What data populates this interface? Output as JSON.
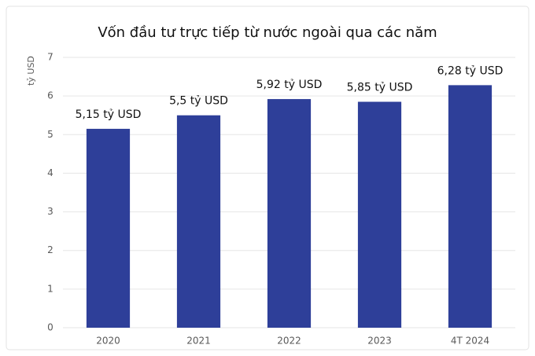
{
  "chart_data": {
    "type": "bar",
    "title": "Vốn đầu tư trực tiếp từ nước ngoài qua các năm",
    "y_label": "tỷ USD",
    "categories": [
      "2020",
      "2021",
      "2022",
      "2023",
      "4T 2024"
    ],
    "values": [
      5.15,
      5.5,
      5.92,
      5.85,
      6.28
    ],
    "value_labels": [
      "5,15 tỷ USD",
      "5,5 tỷ USD",
      "5,92 tỷ USD",
      "5,85 tỷ USD",
      "6,28 tỷ USD"
    ],
    "color": "#2e3f99",
    "ylim": [
      0,
      7
    ],
    "yticks": [
      0,
      1,
      2,
      3,
      4,
      5,
      6,
      7
    ],
    "grid": true
  }
}
